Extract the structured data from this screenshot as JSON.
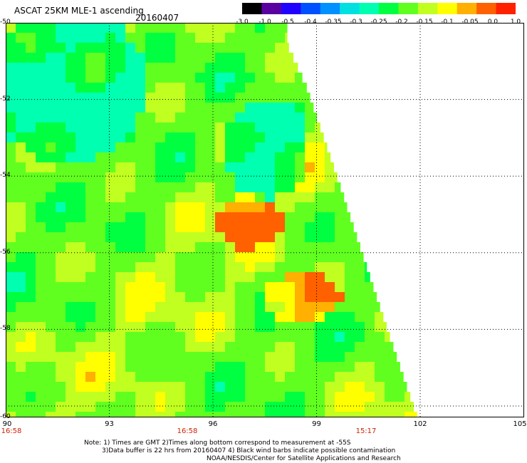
{
  "header": {
    "title": "ASCAT 25KM MLE-1 ascending",
    "date": "20160407"
  },
  "colorbar": {
    "labels": [
      "-3.0",
      "-1.0",
      "-0.5",
      "-0.4",
      "-0.35",
      "-0.3",
      "-0.25",
      "-0.2",
      "-0.15",
      "-0.1",
      "-0.05",
      "0.0",
      "1.0"
    ],
    "colors": [
      "#000000",
      "#5a00a0",
      "#2000ff",
      "#0050ff",
      "#0090ff",
      "#00e0e0",
      "#00ffb0",
      "#00ff40",
      "#60ff20",
      "#c0ff20",
      "#ffff00",
      "#ffb000",
      "#ff6000",
      "#ff2000"
    ]
  },
  "axes": {
    "lat_labels": [
      "-50",
      "-52",
      "-54",
      "-56",
      "-58",
      "-60"
    ],
    "lon_labels": [
      "90",
      "93",
      "96",
      "99",
      "102",
      "105"
    ],
    "time_labels": [
      "16:58",
      "16:58",
      "15:17"
    ]
  },
  "notes": [
    "Note: 1) Times are GMT 2)Times along bottom correspond to measurement at -55S",
    "3)Data buffer is 22 hrs from 20160407 4) Black wind barbs indicate possible contamination",
    "NOAA/NESDIS/Center for Satellite Applications and Research"
  ]
}
